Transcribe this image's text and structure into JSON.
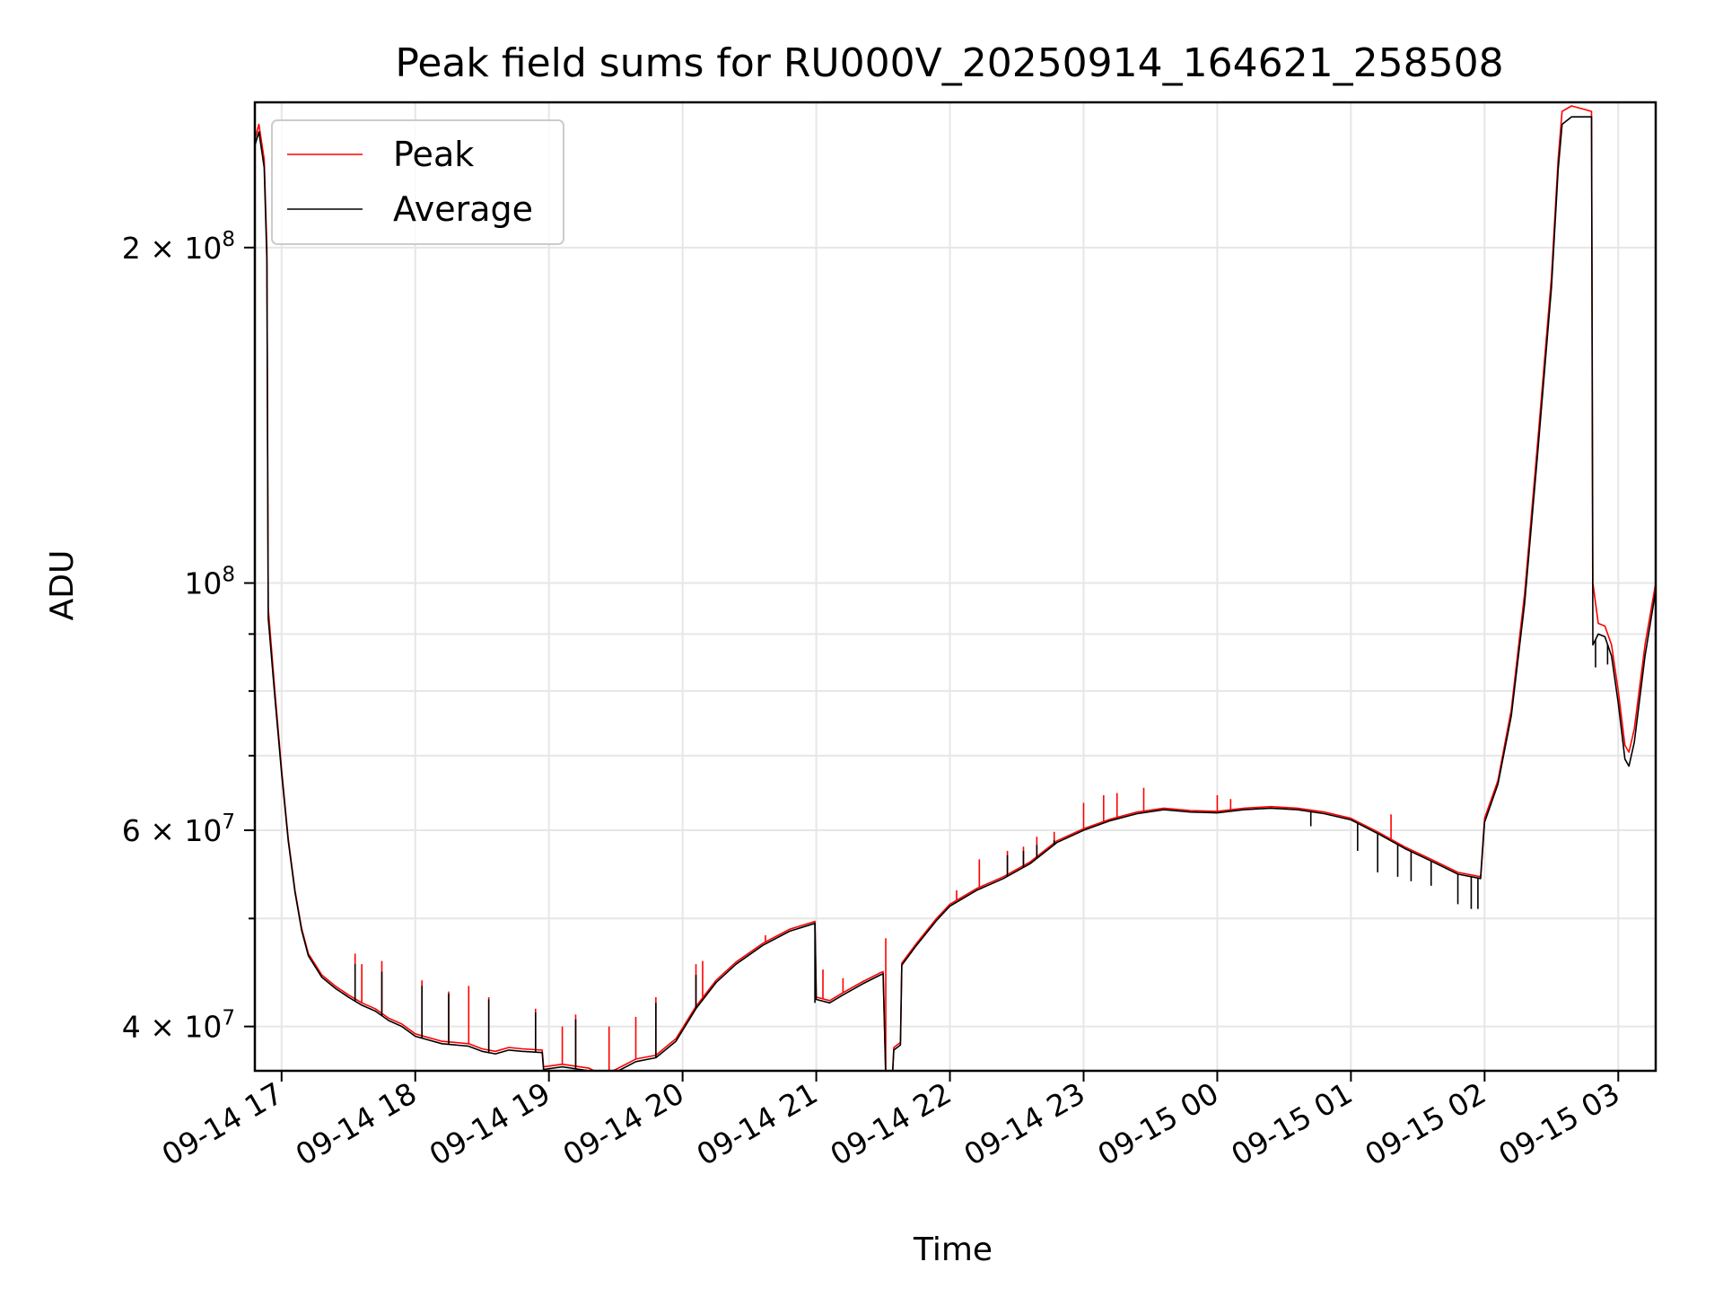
{
  "chart_data": {
    "type": "line",
    "title": "Peak field sums for RU000V_20250914_164621_258508",
    "xlabel": "Time",
    "ylabel": "ADU",
    "yscale": "log",
    "ylim": [
      36500000,
      270000000
    ],
    "xlim_hours": [
      16.8,
      27.28
    ],
    "grid": true,
    "legend_position": "upper-left",
    "x_ticks": [
      {
        "hour": 17,
        "label": "09-14 17"
      },
      {
        "hour": 18,
        "label": "09-14 18"
      },
      {
        "hour": 19,
        "label": "09-14 19"
      },
      {
        "hour": 20,
        "label": "09-14 20"
      },
      {
        "hour": 21,
        "label": "09-14 21"
      },
      {
        "hour": 22,
        "label": "09-14 22"
      },
      {
        "hour": 23,
        "label": "09-14 23"
      },
      {
        "hour": 24,
        "label": "09-15 00"
      },
      {
        "hour": 25,
        "label": "09-15 01"
      },
      {
        "hour": 26,
        "label": "09-15 02"
      },
      {
        "hour": 27,
        "label": "09-15 03"
      }
    ],
    "y_major_ticks": [
      {
        "value": 40000000,
        "mantissa": "4",
        "exp": "7"
      },
      {
        "value": 60000000,
        "mantissa": "6",
        "exp": "7"
      },
      {
        "value": 100000000,
        "mantissa": "",
        "exp": "8"
      },
      {
        "value": 200000000,
        "mantissa": "2",
        "exp": "8"
      }
    ],
    "y_minor_ticks": [
      50000000,
      70000000,
      80000000,
      90000000
    ],
    "series": [
      {
        "name": "Peak",
        "color": "#ff0000",
        "points": [
          [
            16.8,
            250000000
          ],
          [
            16.83,
            258000000
          ],
          [
            16.87,
            240000000
          ],
          [
            16.89,
            200000000
          ],
          [
            16.9,
            95000000
          ],
          [
            16.95,
            80000000
          ],
          [
            17.0,
            68000000
          ],
          [
            17.05,
            59000000
          ],
          [
            17.1,
            53000000
          ],
          [
            17.15,
            49000000
          ],
          [
            17.2,
            46500000
          ],
          [
            17.3,
            44500000
          ],
          [
            17.4,
            43500000
          ],
          [
            17.5,
            42700000
          ],
          [
            17.6,
            42000000
          ],
          [
            17.7,
            41500000
          ],
          [
            17.8,
            40700000
          ],
          [
            17.9,
            40200000
          ],
          [
            18.0,
            39400000
          ],
          [
            18.2,
            38800000
          ],
          [
            18.4,
            38600000
          ],
          [
            18.5,
            38200000
          ],
          [
            18.6,
            38000000
          ],
          [
            18.7,
            38300000
          ],
          [
            18.8,
            38200000
          ],
          [
            18.95,
            38100000
          ],
          [
            18.96,
            36800000
          ],
          [
            19.1,
            37000000
          ],
          [
            19.3,
            36700000
          ],
          [
            19.4,
            36200000
          ],
          [
            19.5,
            36600000
          ],
          [
            19.65,
            37400000
          ],
          [
            19.8,
            37700000
          ],
          [
            19.95,
            39000000
          ],
          [
            20.1,
            41700000
          ],
          [
            20.25,
            44000000
          ],
          [
            20.4,
            45700000
          ],
          [
            20.6,
            47500000
          ],
          [
            20.8,
            48900000
          ],
          [
            20.99,
            49700000
          ],
          [
            21.0,
            42500000
          ],
          [
            21.1,
            42200000
          ],
          [
            21.2,
            42900000
          ],
          [
            21.35,
            43900000
          ],
          [
            21.48,
            44700000
          ],
          [
            21.5,
            44800000
          ],
          [
            21.52,
            36200000
          ],
          [
            21.57,
            36200000
          ],
          [
            21.58,
            38300000
          ],
          [
            21.63,
            38700000
          ],
          [
            21.64,
            45600000
          ],
          [
            21.75,
            47500000
          ],
          [
            21.9,
            50000000
          ],
          [
            22.0,
            51500000
          ],
          [
            22.2,
            53200000
          ],
          [
            22.4,
            54500000
          ],
          [
            22.6,
            56200000
          ],
          [
            22.8,
            58700000
          ],
          [
            23.0,
            60200000
          ],
          [
            23.2,
            61400000
          ],
          [
            23.4,
            62300000
          ],
          [
            23.6,
            62800000
          ],
          [
            23.8,
            62500000
          ],
          [
            24.0,
            62400000
          ],
          [
            24.2,
            62800000
          ],
          [
            24.4,
            63000000
          ],
          [
            24.6,
            62800000
          ],
          [
            24.8,
            62300000
          ],
          [
            25.0,
            61500000
          ],
          [
            25.2,
            59800000
          ],
          [
            25.4,
            58000000
          ],
          [
            25.6,
            56500000
          ],
          [
            25.8,
            55000000
          ],
          [
            25.97,
            54500000
          ],
          [
            26.0,
            61500000
          ],
          [
            26.1,
            66500000
          ],
          [
            26.2,
            77000000
          ],
          [
            26.3,
            98000000
          ],
          [
            26.4,
            135000000
          ],
          [
            26.5,
            188000000
          ],
          [
            26.55,
            240000000
          ],
          [
            26.58,
            265000000
          ],
          [
            26.65,
            268000000
          ],
          [
            26.75,
            266000000
          ],
          [
            26.8,
            265000000
          ],
          [
            26.81,
            100000000
          ],
          [
            26.85,
            92000000
          ],
          [
            26.9,
            91500000
          ],
          [
            26.95,
            88000000
          ],
          [
            27.0,
            80000000
          ],
          [
            27.05,
            71500000
          ],
          [
            27.08,
            70500000
          ],
          [
            27.12,
            74000000
          ],
          [
            27.2,
            88000000
          ],
          [
            27.28,
            100000000
          ]
        ],
        "spikes": [
          [
            17.55,
            46500000
          ],
          [
            17.6,
            45500000
          ],
          [
            17.75,
            45800000
          ],
          [
            18.05,
            44000000
          ],
          [
            18.25,
            43000000
          ],
          [
            18.4,
            43500000
          ],
          [
            18.55,
            42500000
          ],
          [
            18.9,
            41500000
          ],
          [
            19.1,
            40000000
          ],
          [
            19.2,
            41000000
          ],
          [
            19.45,
            40000000
          ],
          [
            19.65,
            40800000
          ],
          [
            19.8,
            42500000
          ],
          [
            20.1,
            45500000
          ],
          [
            20.15,
            45800000
          ],
          [
            20.62,
            48300000
          ],
          [
            21.05,
            45000000
          ],
          [
            21.2,
            44200000
          ],
          [
            21.52,
            48000000
          ],
          [
            22.05,
            53000000
          ],
          [
            22.22,
            56500000
          ],
          [
            22.43,
            57500000
          ],
          [
            22.55,
            58000000
          ],
          [
            22.65,
            59200000
          ],
          [
            22.78,
            59800000
          ],
          [
            23.0,
            63500000
          ],
          [
            23.15,
            64500000
          ],
          [
            23.25,
            64800000
          ],
          [
            23.45,
            65500000
          ],
          [
            24.0,
            64500000
          ],
          [
            24.1,
            64000000
          ],
          [
            25.3,
            62000000
          ]
        ],
        "dips": []
      },
      {
        "name": "Average",
        "color": "#000000",
        "points": [
          [
            16.8,
            247000000
          ],
          [
            16.83,
            254000000
          ],
          [
            16.87,
            236000000
          ],
          [
            16.89,
            195000000
          ],
          [
            16.9,
            93000000
          ],
          [
            16.95,
            79000000
          ],
          [
            17.0,
            67500000
          ],
          [
            17.05,
            58700000
          ],
          [
            17.1,
            52800000
          ],
          [
            17.15,
            48800000
          ],
          [
            17.2,
            46300000
          ],
          [
            17.3,
            44300000
          ],
          [
            17.4,
            43300000
          ],
          [
            17.5,
            42500000
          ],
          [
            17.6,
            41800000
          ],
          [
            17.7,
            41300000
          ],
          [
            17.8,
            40500000
          ],
          [
            17.9,
            40000000
          ],
          [
            18.0,
            39200000
          ],
          [
            18.2,
            38600000
          ],
          [
            18.4,
            38400000
          ],
          [
            18.5,
            38000000
          ],
          [
            18.6,
            37800000
          ],
          [
            18.7,
            38100000
          ],
          [
            18.8,
            38000000
          ],
          [
            18.95,
            37900000
          ],
          [
            18.96,
            36600000
          ],
          [
            19.1,
            36800000
          ],
          [
            19.3,
            36500000
          ],
          [
            19.4,
            36000000
          ],
          [
            19.5,
            36400000
          ],
          [
            19.65,
            37200000
          ],
          [
            19.8,
            37500000
          ],
          [
            19.95,
            38800000
          ],
          [
            20.1,
            41500000
          ],
          [
            20.25,
            43800000
          ],
          [
            20.4,
            45500000
          ],
          [
            20.6,
            47300000
          ],
          [
            20.8,
            48700000
          ],
          [
            20.99,
            49500000
          ],
          [
            21.0,
            42300000
          ],
          [
            21.1,
            42000000
          ],
          [
            21.2,
            42700000
          ],
          [
            21.35,
            43700000
          ],
          [
            21.48,
            44500000
          ],
          [
            21.5,
            44600000
          ],
          [
            21.52,
            36100000
          ],
          [
            21.57,
            36100000
          ],
          [
            21.58,
            38100000
          ],
          [
            21.63,
            38500000
          ],
          [
            21.64,
            45400000
          ],
          [
            21.75,
            47300000
          ],
          [
            21.9,
            49800000
          ],
          [
            22.0,
            51300000
          ],
          [
            22.2,
            53000000
          ],
          [
            22.4,
            54300000
          ],
          [
            22.6,
            56000000
          ],
          [
            22.8,
            58500000
          ],
          [
            23.0,
            60000000
          ],
          [
            23.2,
            61200000
          ],
          [
            23.4,
            62100000
          ],
          [
            23.6,
            62600000
          ],
          [
            23.8,
            62300000
          ],
          [
            24.0,
            62200000
          ],
          [
            24.2,
            62600000
          ],
          [
            24.4,
            62800000
          ],
          [
            24.6,
            62600000
          ],
          [
            24.8,
            62100000
          ],
          [
            25.0,
            61300000
          ],
          [
            25.2,
            59600000
          ],
          [
            25.4,
            57800000
          ],
          [
            25.6,
            56300000
          ],
          [
            25.8,
            54800000
          ],
          [
            25.97,
            54300000
          ],
          [
            26.0,
            61000000
          ],
          [
            26.1,
            66000000
          ],
          [
            26.2,
            76000000
          ],
          [
            26.3,
            96000000
          ],
          [
            26.4,
            132000000
          ],
          [
            26.5,
            184000000
          ],
          [
            26.55,
            235000000
          ],
          [
            26.58,
            258000000
          ],
          [
            26.65,
            262000000
          ],
          [
            26.75,
            262000000
          ],
          [
            26.8,
            262000000
          ],
          [
            26.81,
            88000000
          ],
          [
            26.85,
            90000000
          ],
          [
            26.9,
            89500000
          ],
          [
            26.95,
            86000000
          ],
          [
            27.0,
            78000000
          ],
          [
            27.05,
            69500000
          ],
          [
            27.08,
            68500000
          ],
          [
            27.12,
            72000000
          ],
          [
            27.2,
            86000000
          ],
          [
            27.28,
            98500000
          ]
        ],
        "spikes": [
          [
            17.55,
            45500000
          ],
          [
            17.75,
            44800000
          ],
          [
            18.05,
            43500000
          ],
          [
            18.25,
            42800000
          ],
          [
            18.55,
            42300000
          ],
          [
            18.9,
            41200000
          ],
          [
            19.2,
            40600000
          ],
          [
            19.8,
            42000000
          ],
          [
            20.1,
            44500000
          ],
          [
            22.43,
            57000000
          ],
          [
            22.55,
            57500000
          ],
          [
            22.65,
            58200000
          ],
          [
            22.78,
            58800000
          ]
        ],
        "dips": [
          [
            20.99,
            42000000
          ],
          [
            24.7,
            60500000
          ],
          [
            25.05,
            57500000
          ],
          [
            25.2,
            55000000
          ],
          [
            25.35,
            54500000
          ],
          [
            25.45,
            54000000
          ],
          [
            25.6,
            53500000
          ],
          [
            25.8,
            51500000
          ],
          [
            25.9,
            51000000
          ],
          [
            25.95,
            51000000
          ],
          [
            26.83,
            84000000
          ],
          [
            26.92,
            84500000
          ]
        ]
      }
    ],
    "legend": [
      {
        "label": "Peak",
        "color": "#ff0000"
      },
      {
        "label": "Average",
        "color": "#000000"
      }
    ]
  }
}
